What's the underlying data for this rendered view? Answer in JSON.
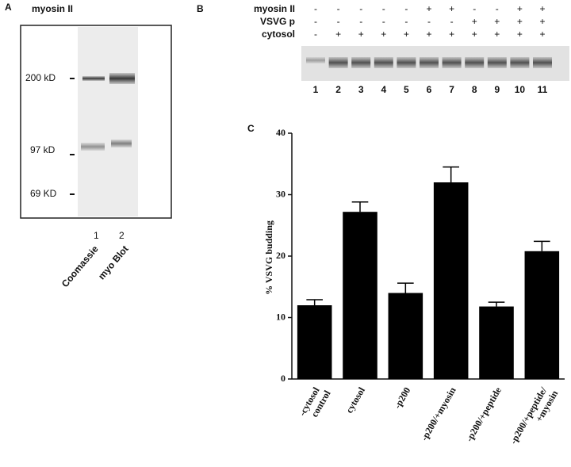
{
  "panel_a": {
    "letter": "A",
    "header": "myosin  II",
    "markers": [
      "200 kD",
      "97 kD",
      "69 KD"
    ],
    "lanes": [
      "1",
      "2"
    ],
    "lane_labels": [
      "Coomassie",
      "myo  Blot"
    ]
  },
  "panel_b": {
    "letter": "B",
    "rows": [
      {
        "label": "myosin   II",
        "signs": [
          "-",
          "-",
          "-",
          "-",
          "-",
          "+",
          "+",
          "-",
          "-",
          "+",
          "+"
        ]
      },
      {
        "label": "VSVG  p",
        "signs": [
          "-",
          "-",
          "-",
          "-",
          "-",
          "-",
          "-",
          "+",
          "+",
          "+",
          "+"
        ]
      },
      {
        "label": "cytosol",
        "signs": [
          "-",
          "+",
          "+",
          "+",
          "+",
          "+",
          "+",
          "+",
          "+",
          "+",
          "+"
        ]
      }
    ],
    "lanes": [
      "1",
      "2",
      "3",
      "4",
      "5",
      "6",
      "7",
      "8",
      "9",
      "10",
      "11"
    ]
  },
  "chart_data": {
    "type": "bar",
    "letter": "C",
    "y_label": "%  VSVG  budding",
    "categories": [
      [
        "-cytosol",
        "control"
      ],
      [
        "cytosol"
      ],
      [
        "-p200"
      ],
      [
        "-p200/+myosin"
      ],
      [
        "-p200/+peptide"
      ],
      [
        "-p200/+peptide/",
        "+myosin"
      ]
    ],
    "values": [
      12,
      27.2,
      14,
      32,
      11.8,
      20.8
    ],
    "errors": [
      0.9,
      1.6,
      1.6,
      2.5,
      0.7,
      1.6
    ],
    "color": "#000000",
    "ylim": [
      0,
      40
    ],
    "yticks": [
      0,
      10,
      20,
      30,
      40
    ]
  }
}
